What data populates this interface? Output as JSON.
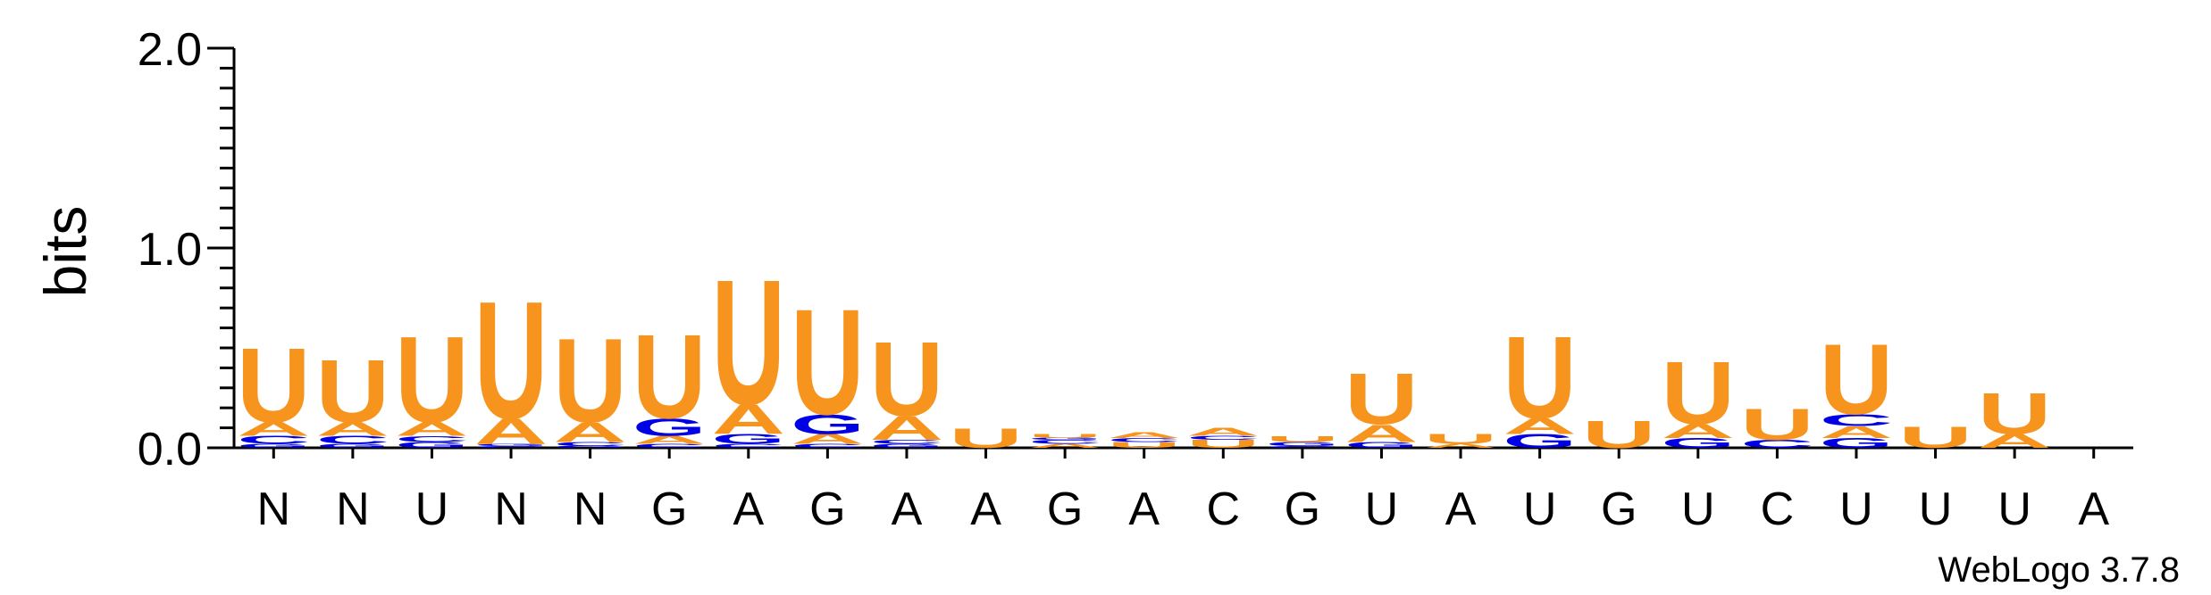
{
  "chart_data": {
    "type": "sequence-logo",
    "ylabel": "bits",
    "ylim": [
      0,
      2.0
    ],
    "yticks": [
      "0.0",
      "1.0",
      "2.0"
    ],
    "credit": "WebLogo 3.7.8",
    "colors": {
      "U": "#f7941d",
      "A": "#f7941d",
      "G": "#0000e6",
      "C": "#0000e6"
    },
    "positions": [
      {
        "label": "N",
        "stack": [
          {
            "letter": "G",
            "bits": 0.02
          },
          {
            "letter": "C",
            "bits": 0.04
          },
          {
            "letter": "A",
            "bits": 0.07
          },
          {
            "letter": "U",
            "bits": 0.38
          }
        ]
      },
      {
        "label": "N",
        "stack": [
          {
            "letter": "G",
            "bits": 0.02
          },
          {
            "letter": "C",
            "bits": 0.04
          },
          {
            "letter": "A",
            "bits": 0.07
          },
          {
            "letter": "U",
            "bits": 0.32
          }
        ]
      },
      {
        "label": "U",
        "stack": [
          {
            "letter": "G",
            "bits": 0.03
          },
          {
            "letter": "C",
            "bits": 0.03
          },
          {
            "letter": "A",
            "bits": 0.07
          },
          {
            "letter": "U",
            "bits": 0.44
          }
        ]
      },
      {
        "label": "N",
        "stack": [
          {
            "letter": "C",
            "bits": 0.01
          },
          {
            "letter": "G",
            "bits": 0.01
          },
          {
            "letter": "A",
            "bits": 0.13
          },
          {
            "letter": "U",
            "bits": 0.6
          }
        ]
      },
      {
        "label": "N",
        "stack": [
          {
            "letter": "G",
            "bits": 0.01
          },
          {
            "letter": "C",
            "bits": 0.02
          },
          {
            "letter": "A",
            "bits": 0.1
          },
          {
            "letter": "U",
            "bits": 0.43
          }
        ]
      },
      {
        "label": "G",
        "stack": [
          {
            "letter": "C",
            "bits": 0.02
          },
          {
            "letter": "A",
            "bits": 0.04
          },
          {
            "letter": "G",
            "bits": 0.09
          },
          {
            "letter": "U",
            "bits": 0.43
          }
        ]
      },
      {
        "label": "A",
        "stack": [
          {
            "letter": "C",
            "bits": 0.02
          },
          {
            "letter": "G",
            "bits": 0.05
          },
          {
            "letter": "A",
            "bits": 0.15
          },
          {
            "letter": "U",
            "bits": 0.64
          }
        ]
      },
      {
        "label": "G",
        "stack": [
          {
            "letter": "C",
            "bits": 0.02
          },
          {
            "letter": "A",
            "bits": 0.05
          },
          {
            "letter": "G",
            "bits": 0.1
          },
          {
            "letter": "U",
            "bits": 0.54
          }
        ]
      },
      {
        "label": "A",
        "stack": [
          {
            "letter": "G",
            "bits": 0.02
          },
          {
            "letter": "C",
            "bits": 0.02
          },
          {
            "letter": "A",
            "bits": 0.12
          },
          {
            "letter": "U",
            "bits": 0.38
          }
        ]
      },
      {
        "label": "A",
        "stack": [
          {
            "letter": "U",
            "bits": 0.1
          }
        ]
      },
      {
        "label": "G",
        "stack": [
          {
            "letter": "A",
            "bits": 0.02
          },
          {
            "letter": "C",
            "bits": 0.02
          },
          {
            "letter": "G",
            "bits": 0.01
          },
          {
            "letter": "U",
            "bits": 0.02
          }
        ]
      },
      {
        "label": "A",
        "stack": [
          {
            "letter": "U",
            "bits": 0.03
          },
          {
            "letter": "C",
            "bits": 0.02
          },
          {
            "letter": "A",
            "bits": 0.03
          }
        ]
      },
      {
        "label": "C",
        "stack": [
          {
            "letter": "U",
            "bits": 0.04
          },
          {
            "letter": "C",
            "bits": 0.02
          },
          {
            "letter": "A",
            "bits": 0.04
          }
        ]
      },
      {
        "label": "G",
        "stack": [
          {
            "letter": "C",
            "bits": 0.01
          },
          {
            "letter": "G",
            "bits": 0.02
          },
          {
            "letter": "U",
            "bits": 0.03
          }
        ]
      },
      {
        "label": "U",
        "stack": [
          {
            "letter": "G",
            "bits": 0.03
          },
          {
            "letter": "A",
            "bits": 0.09
          },
          {
            "letter": "U",
            "bits": 0.26
          }
        ]
      },
      {
        "label": "A",
        "stack": [
          {
            "letter": "A",
            "bits": 0.02
          },
          {
            "letter": "U",
            "bits": 0.05
          }
        ]
      },
      {
        "label": "U",
        "stack": [
          {
            "letter": "G",
            "bits": 0.07
          },
          {
            "letter": "A",
            "bits": 0.08
          },
          {
            "letter": "U",
            "bits": 0.42
          }
        ]
      },
      {
        "label": "G",
        "stack": [
          {
            "letter": "U",
            "bits": 0.14
          }
        ]
      },
      {
        "label": "U",
        "stack": [
          {
            "letter": "G",
            "bits": 0.05
          },
          {
            "letter": "A",
            "bits": 0.07
          },
          {
            "letter": "U",
            "bits": 0.32
          }
        ]
      },
      {
        "label": "C",
        "stack": [
          {
            "letter": "C",
            "bits": 0.04
          },
          {
            "letter": "U",
            "bits": 0.16
          }
        ]
      },
      {
        "label": "U",
        "stack": [
          {
            "letter": "G",
            "bits": 0.05
          },
          {
            "letter": "A",
            "bits": 0.06
          },
          {
            "letter": "C",
            "bits": 0.06
          },
          {
            "letter": "U",
            "bits": 0.36
          }
        ]
      },
      {
        "label": "U",
        "stack": [
          {
            "letter": "U",
            "bits": 0.11
          }
        ]
      },
      {
        "label": "U",
        "stack": [
          {
            "letter": "A",
            "bits": 0.07
          },
          {
            "letter": "U",
            "bits": 0.21
          }
        ]
      },
      {
        "label": "A",
        "stack": []
      }
    ]
  }
}
